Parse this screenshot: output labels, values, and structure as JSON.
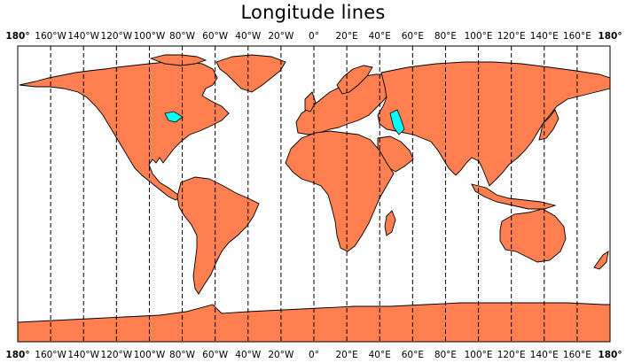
{
  "title": "Longitude lines",
  "map": {
    "projection": "equirectangular",
    "land_color": "#ff7f50",
    "lake_color": "#00ffff",
    "ocean_color": "#ffffff",
    "coast_color": "#000000",
    "meridian_style": "dashed",
    "meridian_step_deg": 20,
    "meridian_labels_top": true,
    "meridian_labels_bottom": true,
    "edge_label": "180°",
    "meridian_labels": [
      "160°W",
      "140°W",
      "120°W",
      "100°W",
      "80°W",
      "60°W",
      "40°W",
      "20°W",
      "0°",
      "20°E",
      "40°E",
      "60°E",
      "80°E",
      "100°E",
      "120°E",
      "140°E",
      "160°E"
    ]
  }
}
